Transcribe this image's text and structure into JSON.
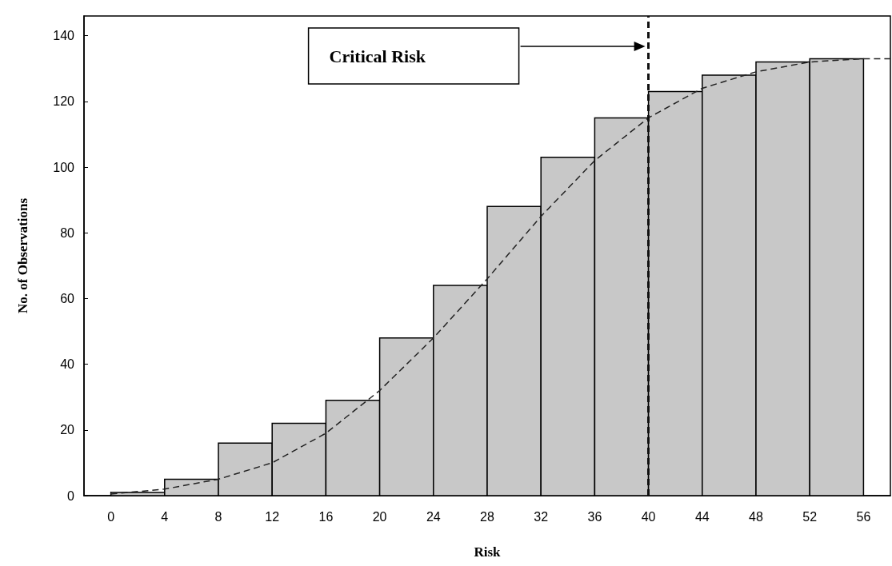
{
  "chart_data": {
    "type": "histogram",
    "xlabel": "Risk",
    "ylabel": "No. of Observations",
    "bins": [
      0,
      4,
      8,
      12,
      16,
      20,
      24,
      28,
      32,
      36,
      40,
      44,
      48,
      52,
      56
    ],
    "values": [
      1,
      5,
      16,
      22,
      29,
      48,
      64,
      88,
      103,
      115,
      123,
      128,
      132,
      133
    ],
    "color": "#c8c8c8",
    "series": [
      {
        "type": "line",
        "color": "#222222",
        "line_style": "dashed",
        "marker": "none",
        "x": [
          0,
          4,
          8,
          12,
          16,
          20,
          24,
          28,
          32,
          36,
          40,
          44,
          48,
          52,
          56,
          58
        ],
        "values": [
          0.5,
          2,
          5,
          10,
          19,
          32,
          48,
          66,
          85,
          102,
          115,
          124,
          129,
          132,
          133,
          133
        ]
      }
    ],
    "xlim": [
      -2,
      58
    ],
    "ylim": [
      0,
      146
    ],
    "xticks": [
      0,
      4,
      8,
      12,
      16,
      20,
      24,
      28,
      32,
      36,
      40,
      44,
      48,
      52,
      56
    ],
    "yticks": [
      0,
      20,
      40,
      60,
      80,
      100,
      120,
      140
    ],
    "ref_lines": [
      {
        "axis": "x",
        "value": 40,
        "label": "Critical Risk",
        "color": "#111111",
        "line_style": "dashed"
      }
    ],
    "grid": false
  }
}
